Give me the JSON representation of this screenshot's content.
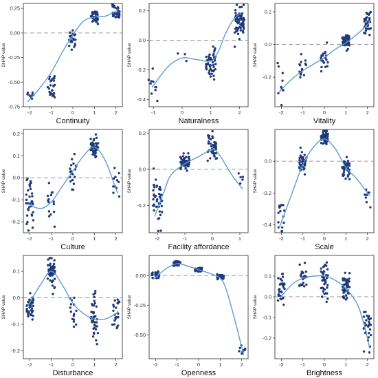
{
  "colors": {
    "points": "#1f3a7a",
    "curve": "#5b9bd5",
    "zero_line": "#9a9a9a",
    "frame": "#222222"
  },
  "chart_data": [
    {
      "type": "scatter",
      "xlabel": "Continuity",
      "ylabel": "SHAP value",
      "xlim": [
        -2.3,
        2.3
      ],
      "ylim": [
        -0.75,
        0.3
      ],
      "xticks": [
        -2,
        -1,
        0,
        1,
        2
      ],
      "yticks": [
        -0.75,
        -0.5,
        -0.25,
        0,
        0.25
      ],
      "ytick_labels": [
        "-0.75",
        "-0.50",
        "-0.25",
        "0.00",
        "0.25"
      ],
      "clusters": [
        {
          "x": -2,
          "y_mean": -0.62,
          "y_spread": 0.03,
          "n": 8
        },
        {
          "x": -1,
          "y_mean": -0.53,
          "y_spread": 0.07,
          "n": 25
        },
        {
          "x": 0,
          "y_mean": -0.05,
          "y_spread": 0.05,
          "n": 20
        },
        {
          "x": 1,
          "y_mean": 0.16,
          "y_spread": 0.03,
          "n": 40
        },
        {
          "x": 2,
          "y_mean": 0.21,
          "y_spread": 0.04,
          "n": 30
        }
      ],
      "curve": [
        [
          -2.1,
          -0.7
        ],
        [
          -1.5,
          -0.55
        ],
        [
          -1,
          -0.4
        ],
        [
          -0.5,
          -0.2
        ],
        [
          0,
          -0.02
        ],
        [
          0.5,
          0.12
        ],
        [
          1,
          0.16
        ],
        [
          1.5,
          0.17
        ],
        [
          2,
          0.22
        ],
        [
          2.1,
          0.24
        ]
      ]
    },
    {
      "type": "scatter",
      "xlabel": "Naturalness",
      "ylabel": "SHAP value",
      "xlim": [
        -1.15,
        2.3
      ],
      "ylim": [
        -0.45,
        0.25
      ],
      "xticks": [
        -1,
        0,
        1,
        2
      ],
      "yticks": [
        -0.4,
        -0.2,
        0,
        0.2
      ],
      "ytick_labels": [
        "-0.4",
        "-0.2",
        "0.0",
        "0.2"
      ],
      "clusters": [
        {
          "x": -1,
          "y_mean": -0.3,
          "y_spread": 0.05,
          "n": 10
        },
        {
          "x": 0,
          "y_mean": -0.15,
          "y_spread": 0.04,
          "n": 3
        },
        {
          "x": 1,
          "y_mean": -0.15,
          "y_spread": 0.05,
          "n": 50
        },
        {
          "x": 2,
          "y_mean": 0.13,
          "y_spread": 0.05,
          "n": 70
        }
      ],
      "curve": [
        [
          -1.05,
          -0.32
        ],
        [
          -0.5,
          -0.18
        ],
        [
          0,
          -0.12
        ],
        [
          0.5,
          -0.13
        ],
        [
          1,
          -0.14
        ],
        [
          1.25,
          -0.08
        ],
        [
          1.5,
          0.04
        ],
        [
          1.75,
          0.13
        ],
        [
          2,
          0.18
        ],
        [
          2.15,
          0.19
        ]
      ]
    },
    {
      "type": "scatter",
      "xlabel": "Vitality",
      "ylabel": "SHAP value",
      "xlim": [
        -2.3,
        2.3
      ],
      "ylim": [
        -0.38,
        0.25
      ],
      "xticks": [
        -2,
        -1,
        0,
        1,
        2
      ],
      "yticks": [
        -0.2,
        0,
        0.2
      ],
      "ytick_labels": [
        "-0.2",
        "0.0",
        "0.2"
      ],
      "clusters": [
        {
          "x": -2,
          "y_mean": -0.25,
          "y_spread": 0.05,
          "n": 10
        },
        {
          "x": -1,
          "y_mean": -0.15,
          "y_spread": 0.04,
          "n": 15
        },
        {
          "x": 0,
          "y_mean": -0.1,
          "y_spread": 0.04,
          "n": 20
        },
        {
          "x": 1,
          "y_mean": 0.02,
          "y_spread": 0.02,
          "n": 50
        },
        {
          "x": 2,
          "y_mean": 0.12,
          "y_spread": 0.05,
          "n": 30
        }
      ],
      "curve": [
        [
          -2.1,
          -0.29
        ],
        [
          -1.5,
          -0.21
        ],
        [
          -1,
          -0.16
        ],
        [
          -0.5,
          -0.12
        ],
        [
          0,
          -0.08
        ],
        [
          0.5,
          -0.03
        ],
        [
          1,
          0.01
        ],
        [
          1.5,
          0.06
        ],
        [
          2,
          0.12
        ],
        [
          2.1,
          0.14
        ]
      ]
    },
    {
      "type": "scatter",
      "xlabel": "Culture",
      "ylabel": "SHAP value",
      "xlim": [
        -2.3,
        2.3
      ],
      "ylim": [
        -0.25,
        0.22
      ],
      "xticks": [
        -2,
        -1,
        0,
        1,
        2
      ],
      "yticks": [
        -0.2,
        -0.1,
        0,
        0.1,
        0.2
      ],
      "ytick_labels": [
        "-0.2",
        "-0.1",
        "0.0",
        "0.1",
        "0.2"
      ],
      "clusters": [
        {
          "x": -2,
          "y_mean": -0.12,
          "y_spread": 0.05,
          "n": 35
        },
        {
          "x": -1,
          "y_mean": -0.12,
          "y_spread": 0.04,
          "n": 15
        },
        {
          "x": 0,
          "y_mean": 0.02,
          "y_spread": 0.04,
          "n": 20
        },
        {
          "x": 1,
          "y_mean": 0.14,
          "y_spread": 0.03,
          "n": 50
        },
        {
          "x": 2,
          "y_mean": -0.04,
          "y_spread": 0.04,
          "n": 12
        }
      ],
      "curve": [
        [
          -2.1,
          -0.12
        ],
        [
          -1.5,
          -0.14
        ],
        [
          -1,
          -0.11
        ],
        [
          -0.5,
          -0.04
        ],
        [
          0,
          0.03
        ],
        [
          0.5,
          0.1
        ],
        [
          1,
          0.14
        ],
        [
          1.5,
          0.08
        ],
        [
          2,
          -0.05
        ],
        [
          2.1,
          -0.07
        ]
      ]
    },
    {
      "type": "scatter",
      "xlabel": "Facility affordance",
      "ylabel": "SHAP value",
      "xlim": [
        -2.3,
        1.3
      ],
      "ylim": [
        -0.35,
        0.22
      ],
      "xticks": [
        -2,
        -1,
        0,
        1
      ],
      "yticks": [
        -0.2,
        0,
        0.2
      ],
      "ytick_labels": [
        "-0.2",
        "0.0",
        "0.2"
      ],
      "clusters": [
        {
          "x": -2,
          "y_mean": -0.18,
          "y_spread": 0.06,
          "n": 45
        },
        {
          "x": -1,
          "y_mean": 0.04,
          "y_spread": 0.02,
          "n": 60
        },
        {
          "x": 0,
          "y_mean": 0.12,
          "y_spread": 0.04,
          "n": 40
        },
        {
          "x": 1,
          "y_mean": -0.05,
          "y_spread": 0.04,
          "n": 5
        }
      ],
      "curve": [
        [
          -2.1,
          -0.26
        ],
        [
          -1.75,
          -0.12
        ],
        [
          -1.5,
          -0.03
        ],
        [
          -1,
          0.03
        ],
        [
          -0.5,
          0.07
        ],
        [
          0,
          0.11
        ],
        [
          0.25,
          0.08
        ],
        [
          0.5,
          0.02
        ],
        [
          0.75,
          -0.04
        ],
        [
          1,
          -0.09
        ],
        [
          1.1,
          -0.11
        ]
      ]
    },
    {
      "type": "scatter",
      "xlabel": "Scale",
      "ylabel": "SHAP value",
      "xlim": [
        -2.3,
        2.3
      ],
      "ylim": [
        -0.45,
        0.2
      ],
      "xticks": [
        -2,
        -1,
        0,
        1,
        2
      ],
      "yticks": [
        -0.4,
        -0.2,
        0
      ],
      "ytick_labels": [
        "-0.4",
        "-0.2",
        "0.0"
      ],
      "clusters": [
        {
          "x": -2,
          "y_mean": -0.35,
          "y_spread": 0.05,
          "n": 15
        },
        {
          "x": -1,
          "y_mean": -0.01,
          "y_spread": 0.03,
          "n": 40
        },
        {
          "x": 0,
          "y_mean": 0.15,
          "y_spread": 0.02,
          "n": 55
        },
        {
          "x": 1,
          "y_mean": -0.05,
          "y_spread": 0.03,
          "n": 50
        },
        {
          "x": 2,
          "y_mean": -0.22,
          "y_spread": 0.04,
          "n": 8
        }
      ],
      "curve": [
        [
          -2.1,
          -0.42
        ],
        [
          -1.5,
          -0.2
        ],
        [
          -1,
          -0.02
        ],
        [
          -0.5,
          0.09
        ],
        [
          0,
          0.14
        ],
        [
          0.5,
          0.08
        ],
        [
          1,
          -0.04
        ],
        [
          1.5,
          -0.11
        ],
        [
          2,
          -0.2
        ],
        [
          2.1,
          -0.22
        ]
      ]
    },
    {
      "type": "scatter",
      "xlabel": "Disturbance",
      "ylabel": "SHAP value",
      "xlim": [
        -2.3,
        2.3
      ],
      "ylim": [
        -0.23,
        0.16
      ],
      "xticks": [
        -2,
        -1,
        0,
        1,
        2
      ],
      "yticks": [
        -0.2,
        -0.1,
        0,
        0.1
      ],
      "ytick_labels": [
        "-0.2",
        "-0.1",
        "0.0",
        "0.1"
      ],
      "clusters": [
        {
          "x": -2,
          "y_mean": -0.03,
          "y_spread": 0.03,
          "n": 40
        },
        {
          "x": -1,
          "y_mean": 0.1,
          "y_spread": 0.03,
          "n": 50
        },
        {
          "x": 0,
          "y_mean": -0.05,
          "y_spread": 0.05,
          "n": 15
        },
        {
          "x": 1,
          "y_mean": -0.07,
          "y_spread": 0.04,
          "n": 40
        },
        {
          "x": 2,
          "y_mean": -0.06,
          "y_spread": 0.04,
          "n": 25
        }
      ],
      "curve": [
        [
          -2.1,
          -0.03
        ],
        [
          -1.5,
          0.05
        ],
        [
          -1,
          0.1
        ],
        [
          -0.5,
          0.05
        ],
        [
          0,
          -0.02
        ],
        [
          0.5,
          -0.06
        ],
        [
          1,
          -0.08
        ],
        [
          1.5,
          -0.08
        ],
        [
          2,
          -0.06
        ],
        [
          2.1,
          -0.05
        ]
      ]
    },
    {
      "type": "scatter",
      "xlabel": "Openness",
      "ylabel": "SHAP value",
      "xlim": [
        -2.3,
        2.3
      ],
      "ylim": [
        -0.7,
        0.17
      ],
      "xticks": [
        -2,
        -1,
        0,
        1,
        2
      ],
      "yticks": [
        -0.5,
        -0.25,
        0
      ],
      "ytick_labels": [
        "-0.50",
        "-0.25",
        "0.00"
      ],
      "clusters": [
        {
          "x": -2,
          "y_mean": 0.0,
          "y_spread": 0.02,
          "n": 25
        },
        {
          "x": -1,
          "y_mean": 0.1,
          "y_spread": 0.01,
          "n": 55
        },
        {
          "x": 0,
          "y_mean": 0.05,
          "y_spread": 0.01,
          "n": 30
        },
        {
          "x": 1,
          "y_mean": -0.01,
          "y_spread": 0.01,
          "n": 40
        },
        {
          "x": 2,
          "y_mean": -0.62,
          "y_spread": 0.02,
          "n": 8
        }
      ],
      "curve": [
        [
          -2.1,
          -0.03
        ],
        [
          -1.5,
          0.06
        ],
        [
          -1,
          0.1
        ],
        [
          -0.5,
          0.08
        ],
        [
          0,
          0.05
        ],
        [
          0.5,
          0.02
        ],
        [
          1,
          -0.02
        ],
        [
          1.25,
          -0.1
        ],
        [
          1.5,
          -0.25
        ],
        [
          1.75,
          -0.42
        ],
        [
          2,
          -0.6
        ],
        [
          2.1,
          -0.67
        ]
      ]
    },
    {
      "type": "scatter",
      "xlabel": "Brightness",
      "ylabel": "SHAP value",
      "xlim": [
        -2.3,
        2.3
      ],
      "ylim": [
        -0.3,
        0.2
      ],
      "xticks": [
        -2,
        -1,
        0,
        1,
        2
      ],
      "yticks": [
        -0.2,
        -0.1,
        0,
        0.1
      ],
      "ytick_labels": [
        "-0.2",
        "-0.1",
        "0.0",
        "0.1"
      ],
      "clusters": [
        {
          "x": -2,
          "y_mean": 0.02,
          "y_spread": 0.04,
          "n": 30
        },
        {
          "x": -1,
          "y_mean": 0.1,
          "y_spread": 0.04,
          "n": 25
        },
        {
          "x": 0,
          "y_mean": 0.08,
          "y_spread": 0.04,
          "n": 40
        },
        {
          "x": 1,
          "y_mean": 0.05,
          "y_spread": 0.03,
          "n": 50
        },
        {
          "x": 2,
          "y_mean": -0.15,
          "y_spread": 0.05,
          "n": 30
        }
      ],
      "curve": [
        [
          -2.1,
          -0.01
        ],
        [
          -1.5,
          0.06
        ],
        [
          -1,
          0.09
        ],
        [
          -0.5,
          0.1
        ],
        [
          0,
          0.1
        ],
        [
          0.5,
          0.08
        ],
        [
          1,
          0.04
        ],
        [
          1.5,
          -0.03
        ],
        [
          1.75,
          -0.1
        ],
        [
          2,
          -0.2
        ],
        [
          2.1,
          -0.25
        ]
      ]
    }
  ]
}
